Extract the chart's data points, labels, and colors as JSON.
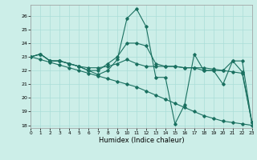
{
  "xlabel": "Humidex (Indice chaleur)",
  "background_color": "#cceee8",
  "grid_color": "#aaddd8",
  "line_color": "#1a7060",
  "xlim": [
    0,
    23
  ],
  "ylim": [
    17.8,
    26.8
  ],
  "yticks": [
    18,
    19,
    20,
    21,
    22,
    23,
    24,
    25,
    26
  ],
  "xticks": [
    0,
    1,
    2,
    3,
    4,
    5,
    6,
    7,
    8,
    9,
    10,
    11,
    12,
    13,
    14,
    15,
    16,
    17,
    18,
    19,
    20,
    21,
    22,
    23
  ],
  "curves": [
    {
      "x": [
        0,
        1,
        2,
        3,
        4,
        5,
        6,
        7,
        8,
        9,
        10,
        11,
        12,
        13,
        14,
        15,
        16,
        17,
        18,
        19,
        20,
        21,
        22,
        23
      ],
      "y": [
        23,
        23.2,
        22.7,
        22.7,
        22.5,
        22.3,
        22.2,
        22.2,
        22.3,
        22.5,
        22.8,
        22.5,
        22.3,
        22.3,
        22.3,
        22.3,
        22.2,
        22.2,
        22.2,
        22.1,
        22.0,
        21.9,
        21.8,
        18.2
      ]
    },
    {
      "x": [
        0,
        1,
        2,
        3,
        4,
        5,
        6,
        7,
        8,
        9,
        10,
        11,
        12,
        13,
        14,
        15,
        16,
        17,
        18,
        19,
        20,
        21,
        22,
        23
      ],
      "y": [
        23,
        23.2,
        22.7,
        22.7,
        22.5,
        22.3,
        22.0,
        22.0,
        22.5,
        23.0,
        24.0,
        24.0,
        23.8,
        22.5,
        22.3,
        22.3,
        22.2,
        22.2,
        22.0,
        22.0,
        22.0,
        22.7,
        22.7,
        18.2
      ]
    },
    {
      "x": [
        0,
        1,
        2,
        3,
        4,
        5,
        6,
        7,
        8,
        9,
        10,
        11,
        12,
        13,
        14,
        15,
        16,
        17,
        18,
        19,
        20,
        21,
        22,
        23
      ],
      "y": [
        23,
        23.2,
        22.7,
        22.7,
        22.5,
        22.3,
        22.0,
        21.7,
        22.0,
        22.8,
        25.8,
        26.5,
        25.2,
        21.5,
        21.5,
        18.1,
        19.5,
        23.2,
        22.0,
        22.0,
        21.0,
        22.7,
        21.9,
        18.2
      ]
    },
    {
      "x": [
        0,
        1,
        2,
        3,
        4,
        5,
        6,
        7,
        8,
        9,
        10,
        11,
        12,
        13,
        14,
        15,
        16,
        17,
        18,
        19,
        20,
        21,
        22,
        23
      ],
      "y": [
        23,
        22.8,
        22.6,
        22.4,
        22.2,
        22.0,
        21.8,
        21.6,
        21.4,
        21.2,
        21.0,
        20.8,
        20.5,
        20.2,
        19.9,
        19.6,
        19.3,
        19.0,
        18.7,
        18.5,
        18.3,
        18.2,
        18.1,
        18.0
      ]
    }
  ]
}
